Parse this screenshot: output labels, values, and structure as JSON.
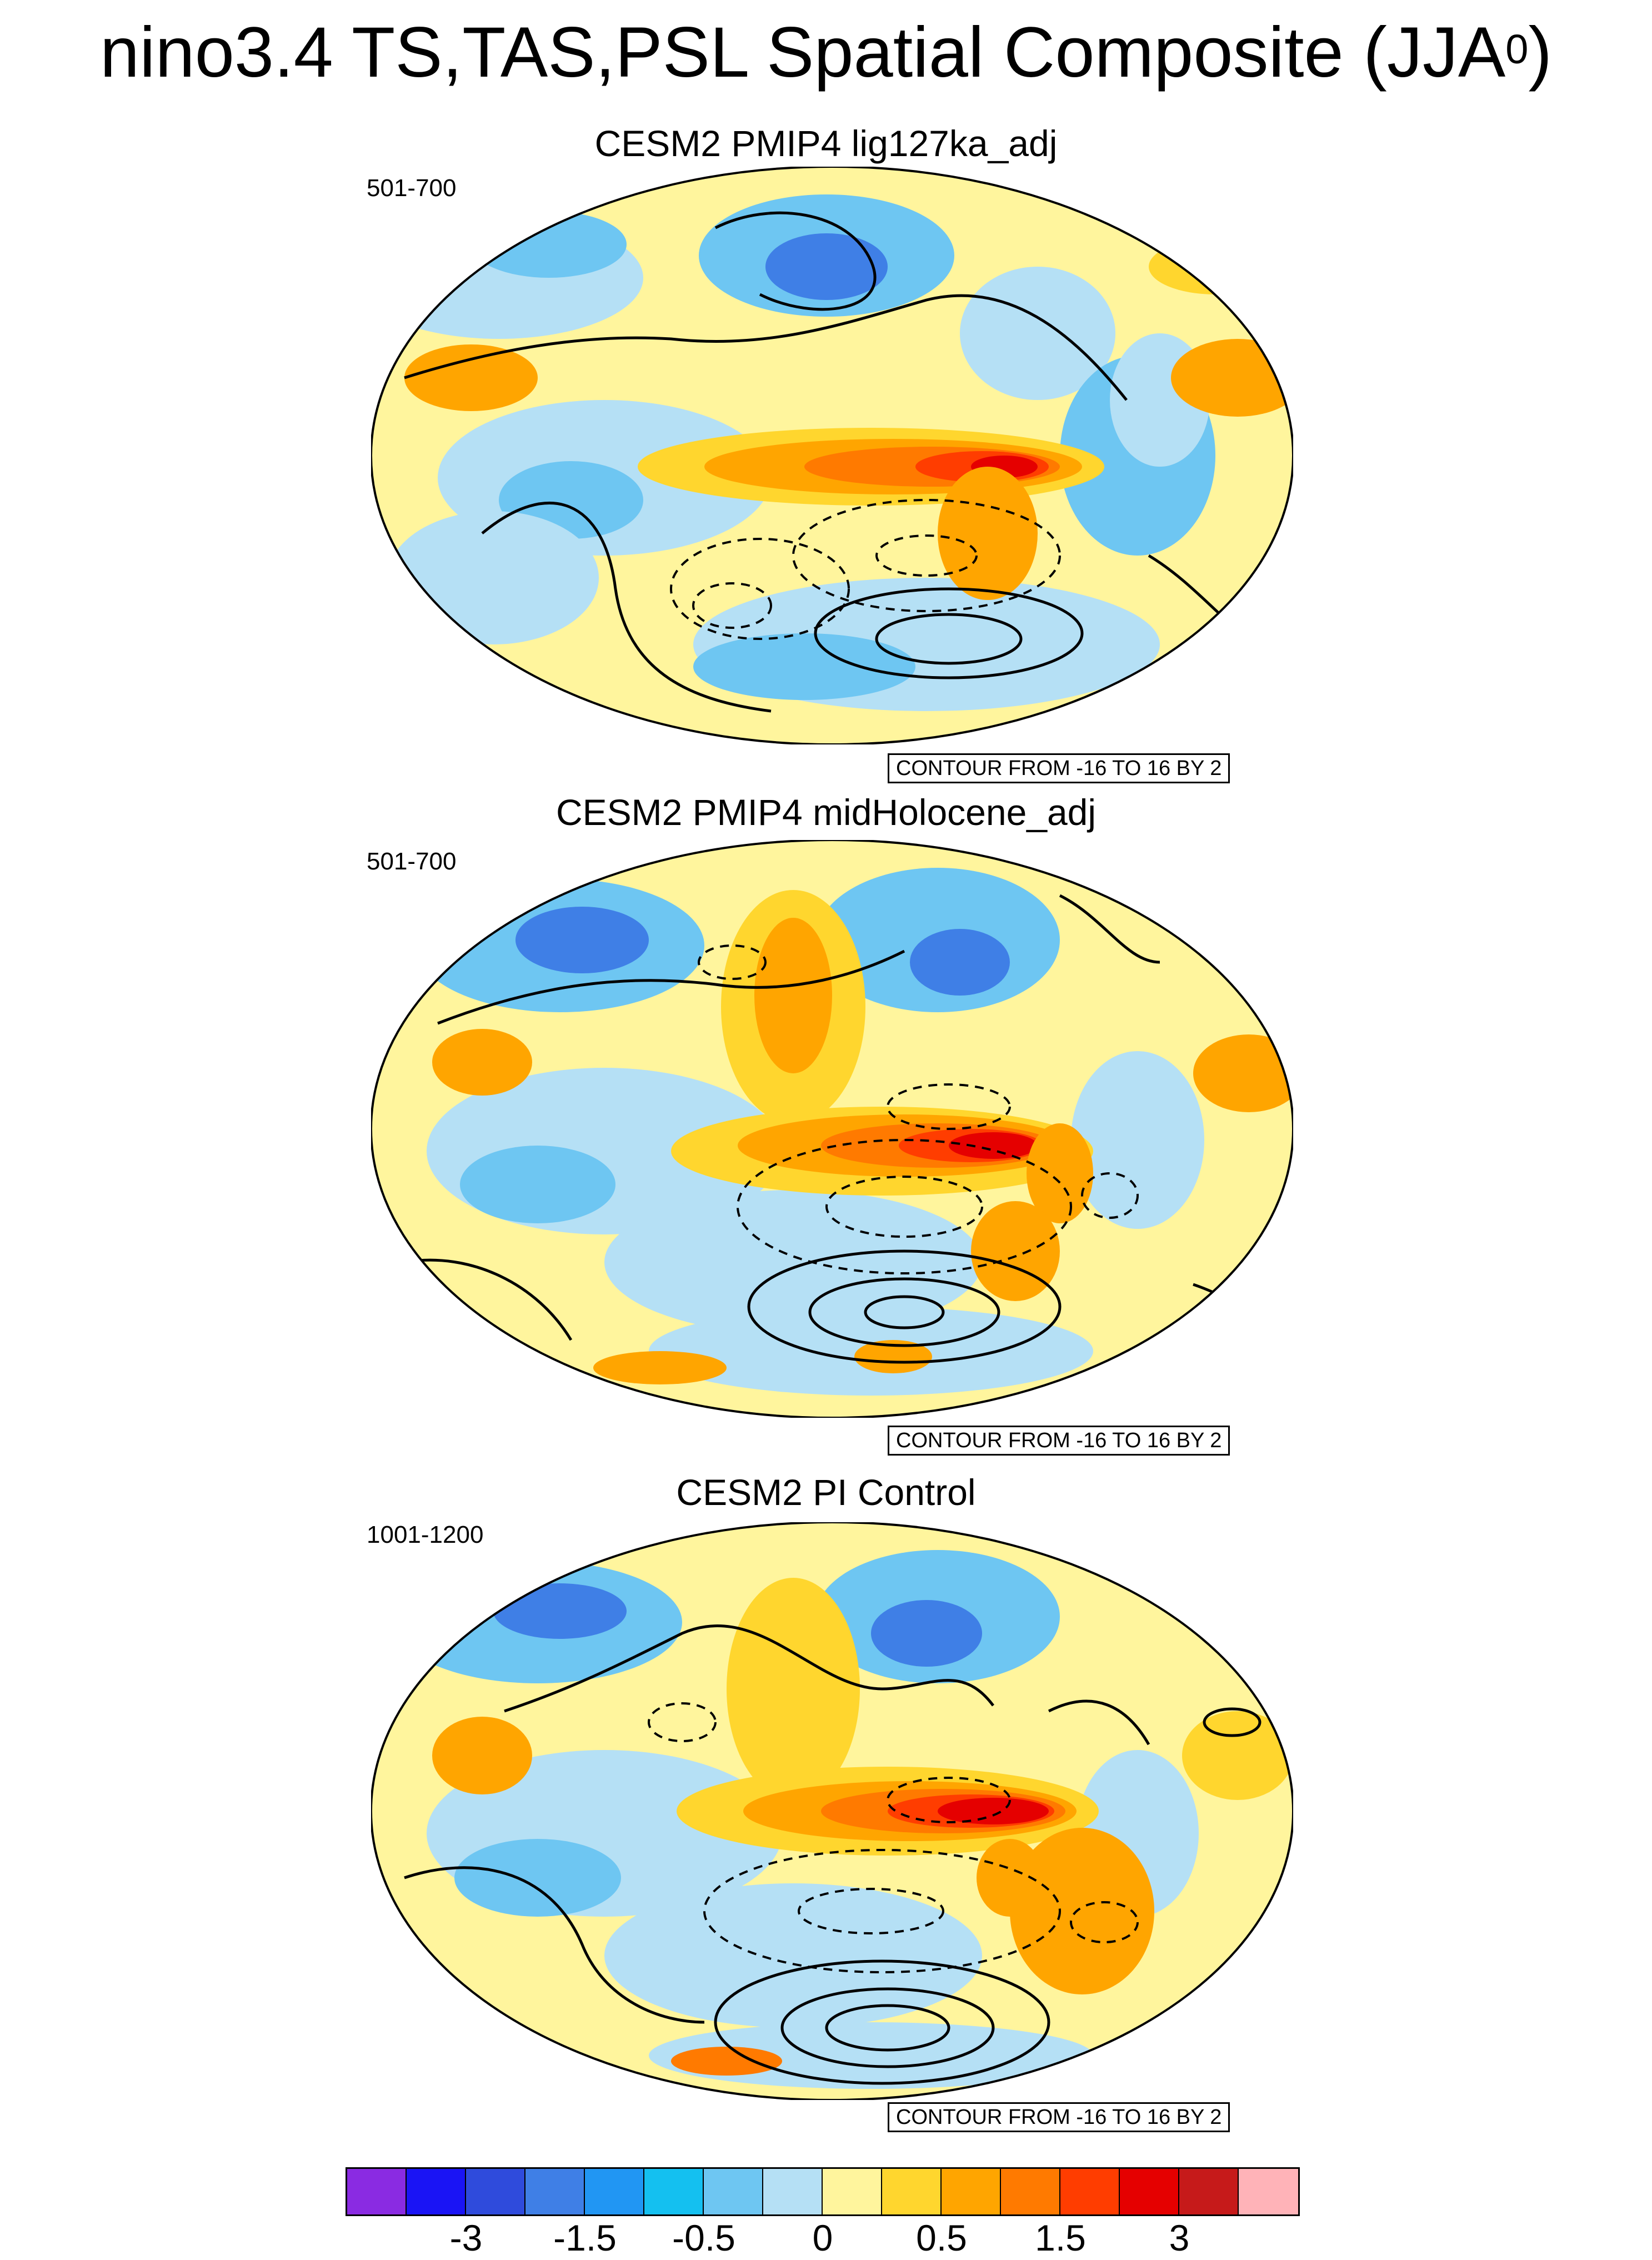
{
  "figure": {
    "title_main": "nino3.4 TS,TAS,PSL Spatial Composite (JJA",
    "title_sup": "0",
    "title_close": ")"
  },
  "panels": [
    {
      "title": "CESM2 PMIP4 lig127ka_adj",
      "years": "501-700",
      "contour_note": "CONTOUR FROM -16 TO 16 BY 2"
    },
    {
      "title": "CESM2 PMIP4 midHolocene_adj",
      "years": "501-700",
      "contour_note": "CONTOUR FROM -16 TO 16 BY 2"
    },
    {
      "title": "CESM2 PI Control",
      "years": "1001-1200",
      "contour_note": "CONTOUR FROM -16 TO 16 BY 2"
    }
  ],
  "colorbar": {
    "colors": [
      "#8a2be2",
      "#1a14f5",
      "#2f4bdc",
      "#3f7fe6",
      "#2196f3",
      "#14c0f0",
      "#6ec6f2",
      "#b5e0f5",
      "#fff59d",
      "#ffd62e",
      "#ffa500",
      "#ff7a00",
      "#ff3d00",
      "#e50000",
      "#c61a1a",
      "#ffb3b8"
    ],
    "labels": [
      "-3",
      "-1.5",
      "-0.5",
      "0",
      "0.5",
      "1.5",
      "3"
    ]
  }
}
